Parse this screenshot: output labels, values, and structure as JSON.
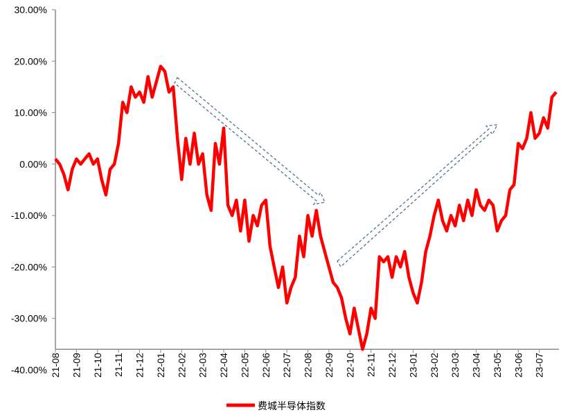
{
  "chart_data": {
    "type": "line",
    "categories": [
      "21-08",
      null,
      null,
      null,
      null,
      "21-09",
      null,
      null,
      null,
      null,
      "21-10",
      null,
      null,
      null,
      null,
      "21-11",
      null,
      null,
      null,
      null,
      "21-12",
      null,
      null,
      null,
      null,
      "22-01",
      null,
      null,
      null,
      null,
      "22-02",
      null,
      null,
      null,
      null,
      "22-03",
      null,
      null,
      null,
      null,
      "22-04",
      null,
      null,
      null,
      null,
      "22-05",
      null,
      null,
      null,
      null,
      "22-06",
      null,
      null,
      null,
      null,
      "22-07",
      null,
      null,
      null,
      null,
      "22-08",
      null,
      null,
      null,
      null,
      "22-09",
      null,
      null,
      null,
      null,
      "22-10",
      null,
      null,
      null,
      null,
      "22-11",
      null,
      null,
      null,
      null,
      "22-12",
      null,
      null,
      null,
      null,
      "23-01",
      null,
      null,
      null,
      null,
      "23-02",
      null,
      null,
      null,
      null,
      "23-03",
      null,
      null,
      null,
      null,
      "23-04",
      null,
      null,
      null,
      null,
      "23-05",
      null,
      null,
      null,
      null,
      "23-06",
      null,
      null,
      null,
      null,
      "23-07",
      null,
      null,
      null,
      null
    ],
    "series": [
      {
        "name": "费城半导体指数",
        "color": "#ff0000",
        "values": [
          1,
          0,
          -2,
          -5,
          -1,
          1,
          0,
          1,
          2,
          0,
          1,
          -3,
          -6,
          -1,
          0,
          4,
          12,
          10,
          15,
          13,
          14,
          12,
          17,
          13,
          16,
          19,
          18,
          14,
          15,
          5,
          -3,
          5,
          0,
          6,
          0,
          2,
          -6,
          -9,
          4,
          0,
          7,
          -8,
          -10,
          -7,
          -13,
          -7,
          -15,
          -10,
          -12,
          -8,
          -7,
          -16,
          -20,
          -24,
          -20,
          -27,
          -24,
          -22,
          -14,
          -18,
          -10,
          -14,
          -9,
          -14,
          -17,
          -20,
          -23,
          -24,
          -26,
          -30,
          -33,
          -28,
          -32,
          -36,
          -33,
          -28,
          -30,
          -18,
          -19,
          -18,
          -22,
          -18,
          -20,
          -17,
          -22,
          -25,
          -27,
          -23,
          -17,
          -14,
          -10,
          -7,
          -11,
          -13,
          -10,
          -12,
          -8,
          -11,
          -7,
          -10,
          -5,
          -8,
          -9,
          -7,
          -8,
          -13,
          -11,
          -10,
          -5,
          -4,
          4,
          3,
          5,
          10,
          5,
          6,
          9,
          7,
          13,
          14
        ]
      }
    ],
    "ylim": [
      -40,
      30
    ],
    "x_axis_at": -36,
    "yticks": [
      {
        "value": 30,
        "label": "30.00%"
      },
      {
        "value": 20,
        "label": "20.00%"
      },
      {
        "value": 10,
        "label": "10.00%"
      },
      {
        "value": 0,
        "label": "0.00%"
      },
      {
        "value": -10,
        "label": "-10.00%"
      },
      {
        "value": -20,
        "label": "-20.00%"
      },
      {
        "value": -30,
        "label": "-30.00%"
      },
      {
        "value": -40,
        "label": "-40.00%"
      }
    ],
    "legend": "bottom"
  }
}
